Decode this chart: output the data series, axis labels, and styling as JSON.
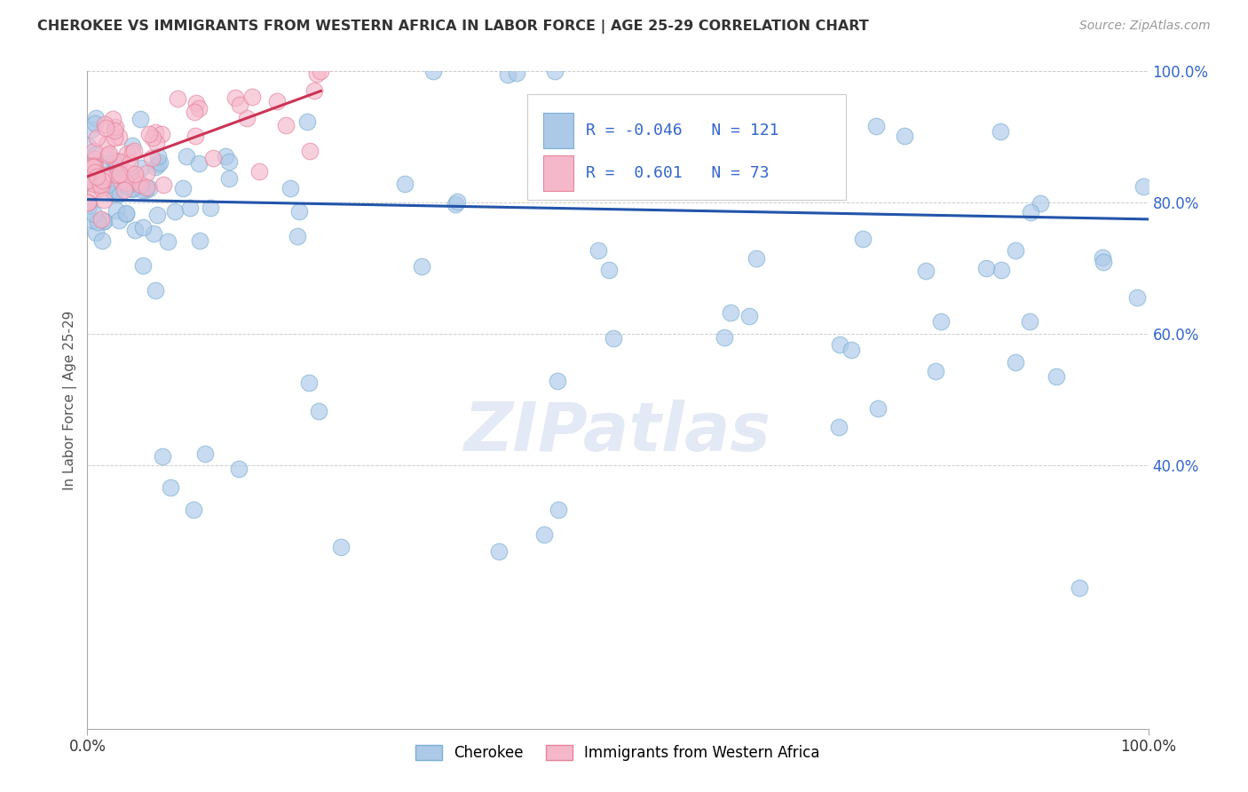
{
  "title": "CHEROKEE VS IMMIGRANTS FROM WESTERN AFRICA IN LABOR FORCE | AGE 25-29 CORRELATION CHART",
  "source": "Source: ZipAtlas.com",
  "ylabel": "In Labor Force | Age 25-29",
  "watermark": "ZIPatlas",
  "cherokee_color": "#adc9e8",
  "cherokee_edge": "#7aafd4",
  "immigrant_color": "#f5b8cb",
  "immigrant_edge": "#e8829a",
  "cherokee_line_color": "#2255aa",
  "immigrant_line_color": "#cc3355",
  "R_cherokee": -0.046,
  "N_cherokee": 121,
  "R_immigrant": 0.601,
  "N_immigrant": 73,
  "background_color": "#ffffff",
  "grid_color": "#aaaaaa",
  "right_tick_color": "#3366cc",
  "xmin": 0,
  "xmax": 100,
  "ymin": 0,
  "ymax": 100,
  "yticks": [
    40,
    60,
    80,
    100
  ],
  "ytick_labels": [
    "40.0%",
    "60.0%",
    "80.0%",
    "100.0%"
  ],
  "cherokee_line_x0": 0,
  "cherokee_line_x1": 100,
  "cherokee_line_y0": 80.5,
  "cherokee_line_y1": 77.5,
  "immigrant_line_x0": 0,
  "immigrant_line_x1": 22,
  "immigrant_line_y0": 84.0,
  "immigrant_line_y1": 97.0
}
